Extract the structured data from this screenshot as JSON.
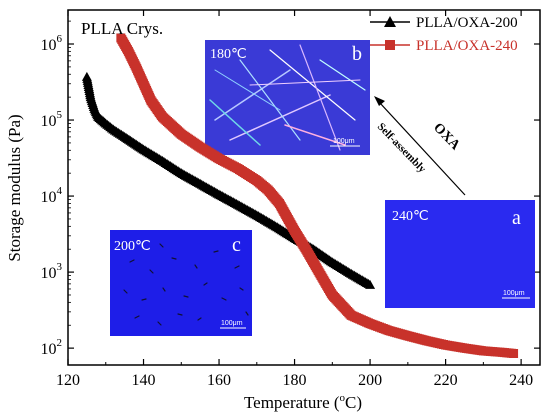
{
  "chart_data": {
    "type": "scatter",
    "x_ticks": [
      120,
      140,
      160,
      180,
      200,
      220,
      240
    ],
    "y_tick_labels": [
      {
        "base": "10",
        "exp": "2",
        "value": 100
      },
      {
        "base": "10",
        "exp": "3",
        "value": 1000
      },
      {
        "base": "10",
        "exp": "4",
        "value": 10000
      },
      {
        "base": "10",
        "exp": "5",
        "value": 100000
      },
      {
        "base": "10",
        "exp": "6",
        "value": 1000000
      }
    ],
    "xlim": [
      120,
      245
    ],
    "ylim": [
      60,
      2800000
    ],
    "ylog": true,
    "xlabel": "Temperature (",
    "xlabel_sup": "o",
    "xlabel_end": "C)",
    "ylabel": "Storage modulus (Pa)",
    "legend_position": "top-right",
    "series": [
      {
        "name": "PLLA/OXA-200",
        "color": "#000000",
        "marker": "triangle",
        "x": [
          125,
          126,
          127,
          128,
          130,
          132,
          135,
          140,
          145,
          150,
          155,
          160,
          165,
          170,
          175,
          180,
          185,
          190,
          195,
          200
        ],
        "y": [
          370000,
          200000,
          140000,
          110000,
          90000,
          75000,
          60000,
          41000,
          29000,
          20000,
          14500,
          10500,
          7700,
          5600,
          4000,
          2800,
          2000,
          1350,
          950,
          680
        ]
      },
      {
        "name": "PLLA/OXA-240",
        "color": "#c8322b",
        "marker": "square",
        "x": [
          134,
          136,
          138,
          140,
          142,
          145,
          150,
          155,
          160,
          165,
          170,
          173,
          176,
          180,
          183,
          186,
          190,
          195,
          200,
          205,
          210,
          215,
          220,
          225,
          230,
          235,
          238
        ],
        "y": [
          1200000,
          800000,
          500000,
          300000,
          180000,
          110000,
          65000,
          44000,
          31000,
          23000,
          16000,
          12000,
          8000,
          3500,
          2000,
          1100,
          500,
          270,
          210,
          170,
          145,
          125,
          110,
          100,
          92,
          88,
          85
        ]
      }
    ],
    "annotations": {
      "title": "PLLA Crys.",
      "arrow_text_1": "OXA",
      "arrow_text_2": "Self-assembly",
      "insets": [
        {
          "letter": "b",
          "temperature": "180℃",
          "scalebar": "100μm",
          "bg": "#3a3ad6"
        },
        {
          "letter": "a",
          "temperature": "240℃",
          "scalebar": "100μm",
          "bg": "#2a2af0"
        },
        {
          "letter": "c",
          "temperature": "200℃",
          "scalebar": "100μm",
          "bg": "#1e1ee8"
        }
      ]
    }
  }
}
